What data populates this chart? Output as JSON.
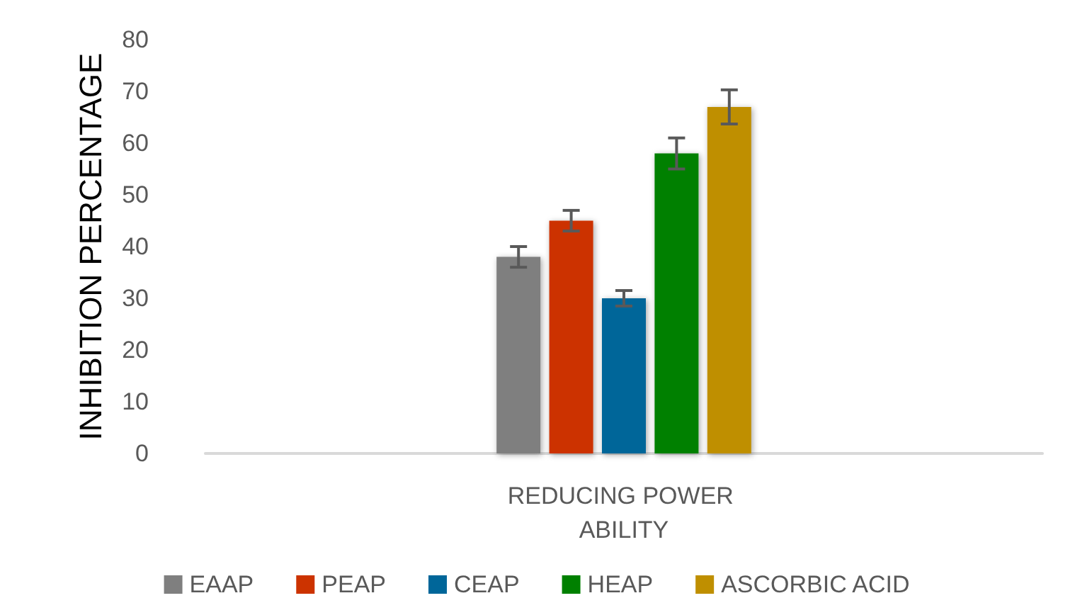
{
  "chart_data": {
    "type": "bar",
    "ylabel": "INHIBITION PERCENTAGE",
    "categories": [
      "REDUCING POWER ABILITY"
    ],
    "series": [
      {
        "name": "EAAP",
        "color": "#7f7f7f",
        "values": [
          38
        ],
        "errors": [
          2
        ]
      },
      {
        "name": "PEAP",
        "color": "#cc3300",
        "values": [
          45
        ],
        "errors": [
          2
        ]
      },
      {
        "name": "CEAP",
        "color": "#006699",
        "values": [
          30
        ],
        "errors": [
          1.5
        ]
      },
      {
        "name": "HEAP",
        "color": "#008000",
        "values": [
          58
        ],
        "errors": [
          3
        ]
      },
      {
        "name": "ASCORBIC ACID",
        "color": "#bf8f00",
        "values": [
          67
        ],
        "errors": [
          3.3
        ]
      }
    ],
    "ylim": [
      0,
      80
    ],
    "yticks": [
      0,
      10,
      20,
      30,
      40,
      50,
      60,
      70,
      80
    ],
    "grid": false,
    "legend": "bottom"
  }
}
